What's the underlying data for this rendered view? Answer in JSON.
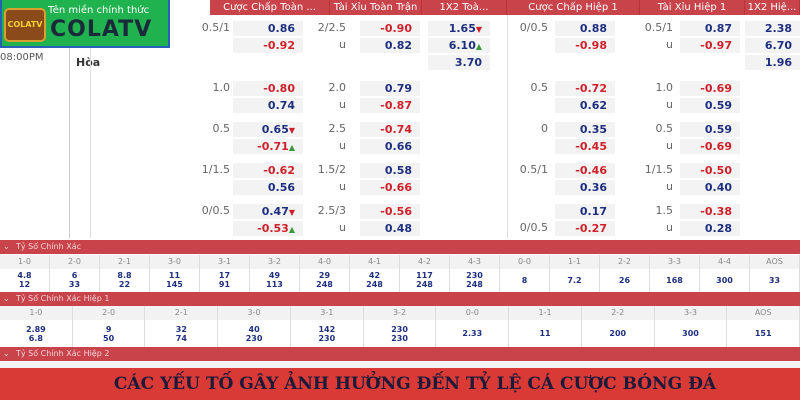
{
  "left": {
    "time": "08:00PM",
    "team": "Hòa"
  },
  "headers": [
    "Cược Chấp Toàn ...",
    "Tài Xỉu Toàn Trận",
    "1X2 Toà...",
    "Cược Chấp Hiệp 1",
    "Tài Xỉu Hiệp 1",
    "1X2 Hiệ..."
  ],
  "groups": [
    {
      "hcp": [
        "0.5/1",
        "0.86",
        "-0.92"
      ],
      "ou": [
        "2/2.5",
        "-0.90",
        "0.82"
      ],
      "x12": [
        "1.65",
        "6.10",
        "3.70"
      ],
      "x12_marks": [
        "down",
        "up",
        ""
      ],
      "h1hcp": [
        "0/0.5",
        "0.88",
        "-0.98"
      ],
      "h1ou": [
        "0.5/1",
        "0.87",
        "-0.97"
      ],
      "h1x12": [
        "2.38",
        "6.70",
        "1.96"
      ]
    },
    {
      "hcp": [
        "1.0",
        "-0.80",
        "0.74"
      ],
      "ou": [
        "2.0",
        "0.79",
        "-0.87"
      ],
      "h1hcp": [
        "0.5",
        "-0.72",
        "0.62"
      ],
      "h1ou": [
        "1.0",
        "-0.69",
        "0.59"
      ]
    },
    {
      "hcp": [
        "0.5",
        "0.65",
        "-0.71"
      ],
      "hcp_marks": [
        "down",
        "up"
      ],
      "ou": [
        "2.5",
        "-0.74",
        "0.66"
      ],
      "h1hcp": [
        "0",
        "0.35",
        "-0.45"
      ],
      "h1ou": [
        "0.5",
        "0.59",
        "-0.69"
      ]
    },
    {
      "hcp": [
        "1/1.5",
        "-0.62",
        "0.56"
      ],
      "ou": [
        "1.5/2",
        "0.58",
        "-0.66"
      ],
      "h1hcp": [
        "0.5/1",
        "-0.46",
        "0.36"
      ],
      "h1ou": [
        "1/1.5",
        "-0.50",
        "0.40"
      ]
    },
    {
      "hcp": [
        "0/0.5",
        "0.47",
        "-0.53"
      ],
      "hcp_marks": [
        "down",
        "up"
      ],
      "ou": [
        "2.5/3",
        "-0.56",
        "0.48"
      ],
      "h1hcp": [
        "",
        "0.17",
        "-0.27"
      ],
      "h1hcp_label2": "0/0.5",
      "h1ou": [
        "1.5",
        "-0.38",
        "0.28"
      ]
    }
  ],
  "under_label": "u",
  "sections": [
    {
      "title": "Tỷ Số Chính Xác",
      "cols": [
        [
          "1-0",
          "4.8",
          "12"
        ],
        [
          "2-0",
          "6",
          "33"
        ],
        [
          "2-1",
          "8.8",
          "22"
        ],
        [
          "3-0",
          "11",
          "145"
        ],
        [
          "3-1",
          "17",
          "91"
        ],
        [
          "3-2",
          "49",
          "113"
        ],
        [
          "4-0",
          "29",
          "248"
        ],
        [
          "4-1",
          "42",
          "248"
        ],
        [
          "4-2",
          "117",
          "248"
        ],
        [
          "4-3",
          "230",
          "248"
        ],
        [
          "0-0",
          "8"
        ],
        [
          "1-1",
          "7.2"
        ],
        [
          "2-2",
          "26"
        ],
        [
          "3-3",
          "168"
        ],
        [
          "4-4",
          "300"
        ],
        [
          "AOS",
          "33"
        ]
      ]
    },
    {
      "title": "Tỷ Số Chính Xác Hiệp 1",
      "cols": [
        [
          "1-0",
          "2.89",
          "6.8"
        ],
        [
          "2-0",
          "9",
          "50"
        ],
        [
          "2-1",
          "32",
          "74"
        ],
        [
          "3-0",
          "40",
          "230"
        ],
        [
          "3-1",
          "142",
          "230"
        ],
        [
          "3-2",
          "230",
          "230"
        ],
        [
          "0-0",
          "2.33"
        ],
        [
          "1-1",
          "11"
        ],
        [
          "2-2",
          "200"
        ],
        [
          "3-3",
          "300"
        ],
        [
          "AOS",
          "151"
        ]
      ]
    },
    {
      "title": "Tỷ Số Chính Xác Hiệp 2",
      "cols": []
    }
  ],
  "banner": "CÁC YẾU TỐ GÂY ẢNH HƯỞNG ĐẾN TỶ LỆ CÁ CƯỢC BÓNG ĐÁ",
  "logo": {
    "tagline": "Tên miền chính thức",
    "brand": "COLATV",
    "tv_text": "COLATV"
  },
  "colors": {
    "header": "#c9434b",
    "positive": "#1e2f80",
    "negative": "#d0202a",
    "logo_bg": "#1fb24e",
    "banner": "#d93a36"
  }
}
